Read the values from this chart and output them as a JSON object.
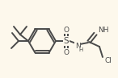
{
  "background_color": "#fdf8ec",
  "line_color": "#4a4a4a",
  "line_width": 1.4,
  "font_size": 6.5,
  "figsize": [
    1.46,
    0.97
  ],
  "dpi": 100,
  "xlim": [
    0,
    146
  ],
  "ylim": [
    0,
    97
  ]
}
